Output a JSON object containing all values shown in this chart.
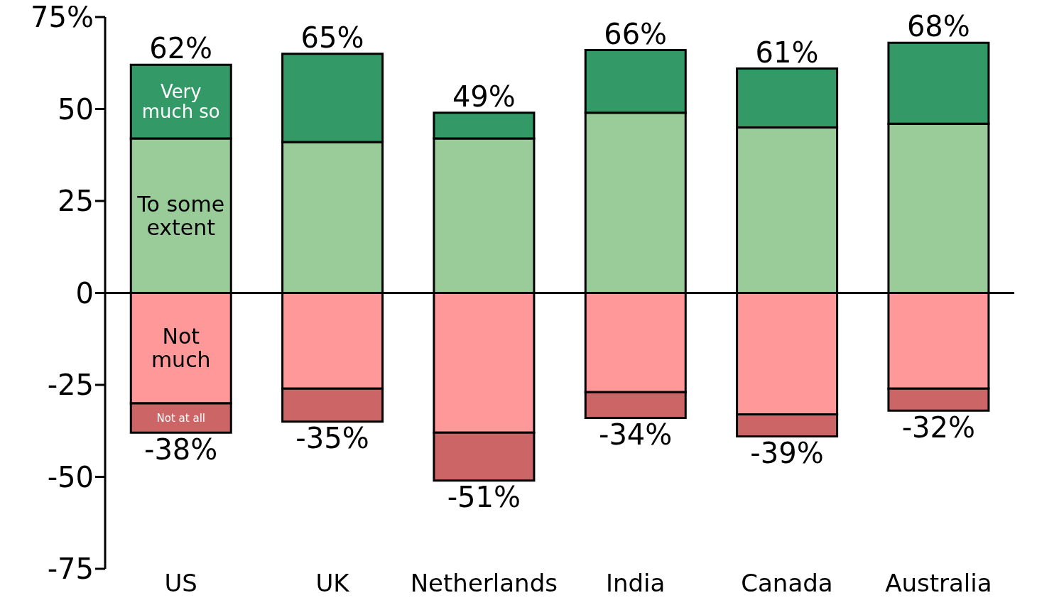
{
  "chart_data": {
    "type": "bar",
    "stacked": true,
    "categories": [
      "US",
      "UK",
      "Netherlands",
      "India",
      "Canada",
      "Australia"
    ],
    "series": [
      {
        "name": "To some extent",
        "color": "#99cc99",
        "values": [
          42,
          41,
          42,
          49,
          45,
          46
        ]
      },
      {
        "name": "Very much so",
        "color": "#339966",
        "values": [
          20,
          24,
          7,
          17,
          16,
          22
        ]
      },
      {
        "name": "Not much",
        "color": "#ff9999",
        "values": [
          -30,
          -26,
          -38,
          -27,
          -33,
          -26
        ]
      },
      {
        "name": "Not at all",
        "color": "#cc6666",
        "values": [
          -8,
          -9,
          -13,
          -7,
          -6,
          -6
        ]
      }
    ],
    "ylim": [
      -75,
      75
    ],
    "yticks": [
      -75,
      -50,
      -25,
      0,
      25,
      50,
      {
        "value": 75,
        "label": "75%"
      }
    ],
    "annotations": [
      {
        "text": "62%",
        "x": "US",
        "y": 62
      },
      {
        "text": "65%",
        "x": "UK",
        "y": 65
      },
      {
        "text": "49%",
        "x": "Netherlands",
        "y": 49
      },
      {
        "text": "66%",
        "x": "India",
        "y": 66
      },
      {
        "text": "61%",
        "x": "Canada",
        "y": 61
      },
      {
        "text": "68%",
        "x": "Australia",
        "y": 68
      },
      {
        "text": "-38%",
        "x": "US",
        "y": -38
      },
      {
        "text": "-35%",
        "x": "UK",
        "y": -35
      },
      {
        "text": "-51%",
        "x": "Netherlands",
        "y": -51
      },
      {
        "text": "-34%",
        "x": "India",
        "y": -34
      },
      {
        "text": "-39%",
        "x": "Canada",
        "y": -39
      },
      {
        "text": "-32%",
        "x": "Australia",
        "y": -32
      }
    ],
    "legend": false
  }
}
